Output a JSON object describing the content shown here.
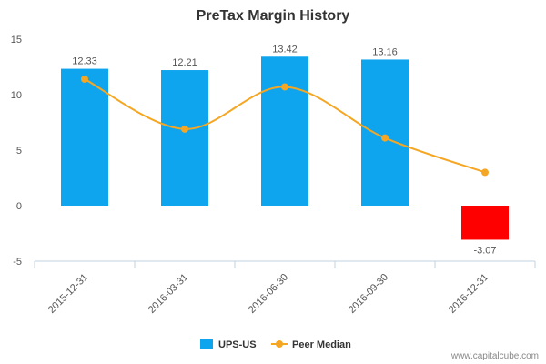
{
  "chart_data": {
    "type": "bar",
    "title": "PreTax Margin History",
    "categories": [
      "2015-12-31",
      "2016-03-31",
      "2016-06-30",
      "2016-09-30",
      "2016-12-31"
    ],
    "series": [
      {
        "name": "UPS-US",
        "kind": "bar",
        "values": [
          12.33,
          12.21,
          13.42,
          13.16,
          -3.07
        ],
        "data_labels": [
          "12.33",
          "12.21",
          "13.42",
          "13.16",
          "-3.07"
        ],
        "color": "#0ea5ee",
        "negative_color": "#ff0000"
      },
      {
        "name": "Peer Median",
        "kind": "line",
        "smooth": true,
        "values": [
          11.4,
          6.9,
          10.7,
          6.1,
          3.0
        ],
        "color": "#f5a623"
      }
    ],
    "ylim": [
      -5,
      15
    ],
    "yticks": [
      "-5",
      "0",
      "5",
      "10",
      "15"
    ],
    "grid": false,
    "legend_position": "bottom"
  },
  "watermark": "www.capitalcube.com"
}
